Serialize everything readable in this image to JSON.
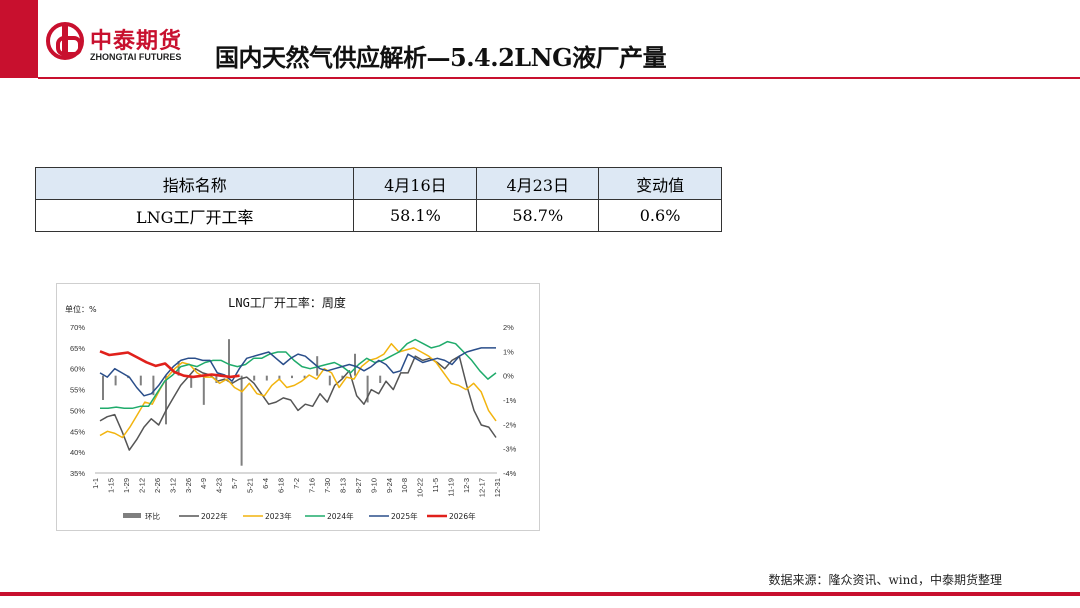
{
  "header": {
    "logo_cn": "中泰期货",
    "logo_en": "ZHONGTAI FUTURES",
    "title": "国内天然气供应解析—5.4.2LNG液厂产量"
  },
  "table": {
    "headers": [
      "指标名称",
      "4月16日",
      "4月23日",
      "变动值"
    ],
    "row": [
      "LNG工厂开工率",
      "58.1%",
      "58.7%",
      "0.6%"
    ]
  },
  "chart_data": {
    "type": "line",
    "title": "LNG工厂开工率：周度",
    "unit_label": "单位：%",
    "y_left": {
      "min": 35,
      "max": 70,
      "ticks": [
        "35%",
        "40%",
        "45%",
        "50%",
        "55%",
        "60%",
        "65%",
        "70%"
      ]
    },
    "y_right": {
      "min": -4,
      "max": 2,
      "ticks": [
        "-4%",
        "-3%",
        "-2%",
        "-1%",
        "0%",
        "1%",
        "2%"
      ]
    },
    "x_labels": [
      "1-1",
      "1-15",
      "1-29",
      "2-12",
      "2-26",
      "3-12",
      "3-26",
      "4-9",
      "4-23",
      "5-7",
      "5-21",
      "6-4",
      "6-18",
      "7-2",
      "7-16",
      "7-30",
      "8-13",
      "8-27",
      "9-10",
      "9-24",
      "10-8",
      "10-22",
      "11-5",
      "11-19",
      "12-3",
      "12-17",
      "12-31"
    ],
    "legend": [
      "环比",
      "2022年",
      "2023年",
      "2024年",
      "2025年",
      "2026年"
    ],
    "series": [
      {
        "name": "2022年",
        "color": "#555555",
        "axis": "left",
        "values": [
          47.5,
          48.5,
          49.0,
          45.0,
          40.5,
          43.0,
          46.0,
          48.0,
          46.5,
          50.0,
          53.0,
          56.0,
          58.0,
          60.0,
          59.0,
          58.5,
          57.0,
          57.5,
          56.5,
          57.5,
          58.0,
          56.5,
          54.0,
          51.5,
          52.0,
          53.0,
          52.5,
          50.0,
          51.5,
          51.0,
          54.0,
          52.0,
          56.0,
          57.5,
          59.5,
          53.5,
          51.5,
          55.0,
          54.0,
          57.0,
          55.0,
          59.0,
          59.0,
          63.0,
          62.0,
          62.5,
          61.5,
          60.0,
          62.0,
          63.0,
          56.0,
          50.0,
          46.5,
          46.0,
          43.5
        ]
      },
      {
        "name": "2023年",
        "color": "#f2b40f",
        "axis": "left",
        "values": [
          44.0,
          45.0,
          44.5,
          43.5,
          46.0,
          49.0,
          52.0,
          51.5,
          55.0,
          58.0,
          60.0,
          61.5,
          61.0,
          59.0,
          58.0,
          58.0,
          56.5,
          57.5,
          55.5,
          54.5,
          56.5,
          54.0,
          53.5,
          56.0,
          57.5,
          55.5,
          56.0,
          57.0,
          58.5,
          57.5,
          60.0,
          59.0,
          55.5,
          58.0,
          57.5,
          60.5,
          62.0,
          62.5,
          63.5,
          66.0,
          64.0,
          64.5,
          65.0,
          64.0,
          63.0,
          61.5,
          59.0,
          56.5,
          56.0,
          55.0,
          56.5,
          54.5,
          50.0,
          47.5
        ]
      },
      {
        "name": "2024年",
        "color": "#1fab6b",
        "axis": "left",
        "values": [
          50.5,
          50.5,
          50.8,
          50.5,
          50.5,
          51.0,
          51.0,
          54.0,
          57.0,
          58.5,
          60.5,
          61.0,
          60.5,
          61.5,
          62.0,
          62.0,
          61.0,
          60.5,
          61.0,
          62.5,
          62.5,
          63.5,
          64.0,
          64.0,
          62.0,
          60.5,
          60.0,
          60.5,
          61.0,
          61.5,
          60.5,
          59.0,
          61.0,
          62.5,
          61.5,
          62.0,
          63.0,
          64.0,
          66.0,
          67.0,
          66.0,
          65.0,
          65.5,
          66.5,
          66.0,
          64.0,
          62.0,
          59.5,
          57.5,
          59.0
        ]
      },
      {
        "name": "2025年",
        "color": "#2a4e8a",
        "axis": "left",
        "values": [
          59.0,
          58.0,
          60.0,
          59.0,
          58.0,
          55.5,
          53.5,
          54.0,
          56.0,
          58.5,
          60.5,
          62.0,
          62.5,
          62.5,
          62.0,
          62.0,
          59.0,
          58.5,
          57.0,
          60.0,
          62.5,
          63.0,
          63.5,
          64.0,
          62.5,
          61.0,
          62.5,
          63.5,
          63.0,
          61.5,
          60.0,
          59.5,
          60.0,
          60.5,
          61.0,
          60.5,
          59.5,
          60.5,
          62.0,
          61.0,
          59.0,
          59.5,
          63.5,
          62.5,
          61.5,
          62.0,
          62.5,
          62.0,
          61.0,
          63.0,
          64.0,
          64.5,
          65.0,
          65.0,
          65.0
        ]
      },
      {
        "name": "2026年",
        "color": "#e0201b",
        "axis": "right",
        "values": [
          1.0,
          0.85,
          0.9,
          0.95,
          0.75,
          0.55,
          0.4,
          0.5,
          0.15,
          0.0,
          -0.05,
          0.0,
          0.05,
          0.0,
          -0.05,
          0.0
        ]
      }
    ],
    "bars": {
      "name": "环比",
      "color": "#7f7f7f",
      "axis": "right",
      "values": [
        -1.0,
        -0.4,
        -0.1,
        -0.4,
        -0.8,
        -2.0,
        0.6,
        -0.5,
        -1.2,
        -0.3,
        1.5,
        -3.7,
        -0.2,
        -0.2,
        -0.2,
        -0.1,
        -0.1,
        0.8,
        -0.4,
        -0.1,
        0.9,
        -1.1,
        -0.3
      ]
    }
  },
  "footer": {
    "source": "数据来源：隆众资讯、wind，中泰期货整理"
  }
}
